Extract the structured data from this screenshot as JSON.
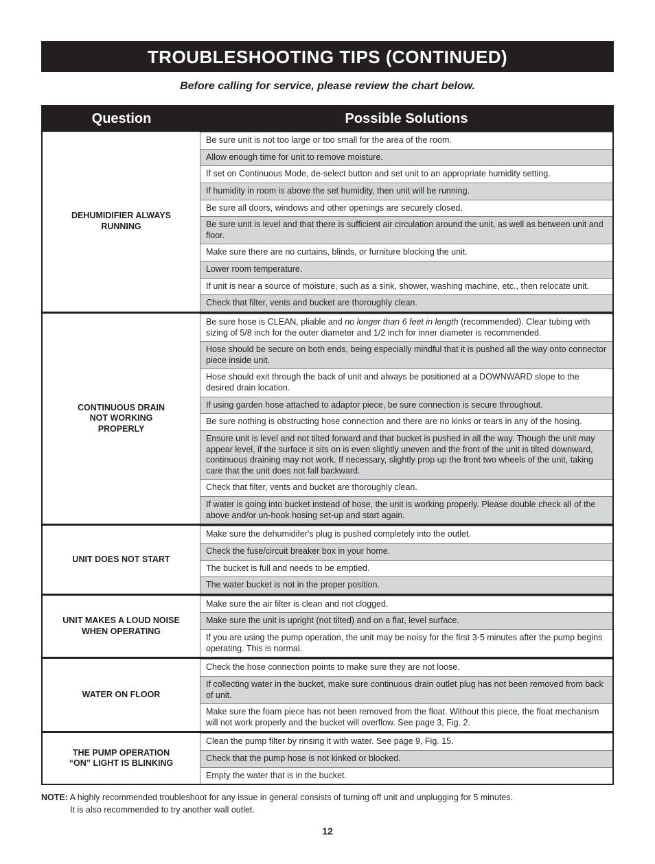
{
  "title": "TROUBLESHOOTING TIPS (CONTINUED)",
  "subtitle": "Before calling for service, please review the chart below.",
  "headers": {
    "question": "Question",
    "solutions": "Possible Solutions"
  },
  "sections": [
    {
      "question": "DEHUMIDIFIER ALWAYS RUNNING",
      "solutions": [
        "Be sure unit is not too large or too small for the area of the room.",
        "Allow enough time for unit to remove moisture.",
        "If set on Continuous Mode, de-select button and set unit to an appropriate humidity setting.",
        "If humidity in room is above the set humidity, then unit will be running.",
        "Be sure all doors, windows and other openings are securely closed.",
        "Be sure unit is level and that there is sufficient air circulation around the unit, as well as between unit and floor.",
        "Make sure there are no curtains, blinds, or furniture blocking the unit.",
        "Lower room temperature.",
        "If unit is near a source of moisture, such as a sink, shower, washing machine, etc., then relocate unit.",
        "Check that filter, vents and bucket are thoroughly clean."
      ]
    },
    {
      "question": "CONTINUOUS DRAIN NOT WORKING PROPERLY",
      "solutions": [
        "Be sure hose is CLEAN, pliable and <em class='u'>no longer than 6 feet in length</em> (recommended).  Clear tubing with sizing of 5/8 inch for the outer diameter and 1/2 inch for inner diameter is recommended.",
        "Hose should be secure on both ends, being especially mindful that it is pushed all the way onto connector piece inside unit.",
        "Hose should exit through the back of unit and always be positioned at a DOWNWARD slope to the desired drain location.",
        "If using garden hose attached to adaptor piece, be sure connection is secure throughout.",
        "Be sure nothing is obstructing hose connection and there are no kinks or tears in any of the hosing.",
        "Ensure unit is level and not tilted forward and that bucket is pushed in all the way. Though the unit may appear level, if the surface it sits on is even slightly uneven and the front of the unit is tilted downward, continuous draining may not work. If necessary, slightly prop up the front two wheels of the unit, taking care that the unit does not fall backward.",
        "Check that filter, vents and bucket are thoroughly clean.",
        "If water is going into bucket instead of hose, the unit is working properly. Please double check all of the above and/or un-hook hosing set-up and start again."
      ]
    },
    {
      "question": "UNIT DOES NOT START",
      "solutions": [
        "Make sure the dehumidifer's plug is pushed completely into the outlet.",
        "Check the fuse/circuit breaker box in your home.",
        "The bucket is full and needs to be emptied.",
        "The water bucket is not in the proper position."
      ]
    },
    {
      "question": "UNIT MAKES A LOUD NOISE WHEN OPERATING",
      "solutions": [
        "Make sure the air filter is clean and not clogged.",
        "Make sure the unit is upright (not tilted) and on a flat, level surface.",
        "If you are using the pump operation, the unit may be noisy for the first 3-5 minutes after the pump begins operating. This is normal."
      ]
    },
    {
      "question": "WATER ON FLOOR",
      "solutions": [
        "Check the hose connection points to make sure they are not loose.",
        "If collecting water in the bucket, make sure continuous drain outlet plug has not been removed from back of unit.",
        "Make sure the foam piece has not been removed from the float. Without this piece, the float mechanism will not work properly and the bucket will overflow. See page 3, Fig. 2."
      ]
    },
    {
      "question": "THE PUMP OPERATION \"ON\" LIGHT IS BLINKING",
      "solutions": [
        "Clean the pump filter by rinsing it with water. See page 9, Fig. 15.",
        "Check that the pump hose is not kinked or blocked.",
        "Empty the water that is in the bucket."
      ]
    }
  ],
  "note_label": "NOTE:",
  "note_line1": "A highly recommended troubleshoot for any issue in general consists of turning off unit and unplugging for 5 minutes.",
  "note_line2": "It is also recommended to try another wall outlet.",
  "page_number": "12",
  "colors": {
    "black": "#231f20",
    "shade": "#d5d6d8",
    "rule": "#808080"
  }
}
